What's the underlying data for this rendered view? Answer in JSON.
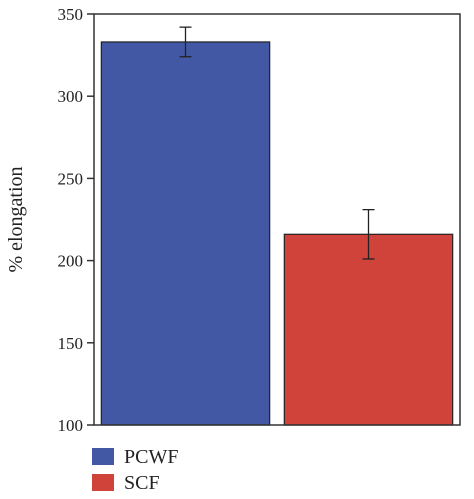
{
  "chart_data": {
    "type": "bar",
    "title": "",
    "xlabel": "",
    "ylabel": "% elongation",
    "ylim": [
      100,
      350
    ],
    "yticks": [
      100,
      150,
      200,
      250,
      300,
      350
    ],
    "grid": false,
    "legend_placement": "bottom-left",
    "categories": [
      "PCWF",
      "SCF"
    ],
    "values": [
      333,
      216
    ],
    "error": [
      9,
      15
    ],
    "colors": [
      "#4358a5",
      "#d0433a"
    ],
    "legend": [
      {
        "label": "PCWF",
        "color": "#4358a5"
      },
      {
        "label": "SCF",
        "color": "#d0433a"
      }
    ]
  }
}
